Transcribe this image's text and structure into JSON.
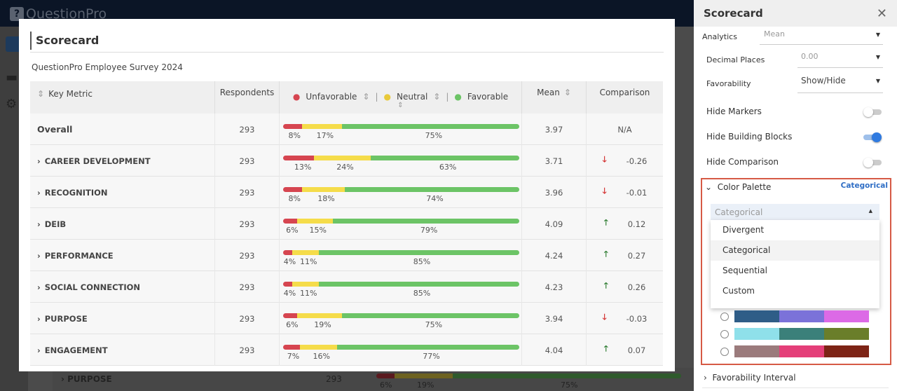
{
  "app": {
    "logo": "QuestionPro"
  },
  "background_row": {
    "label": "PURPOSE",
    "respondents": "293",
    "unfavorable": 6,
    "neutral": 19,
    "favorable": 75,
    "labels": [
      "6%",
      "19%",
      "75%"
    ]
  },
  "modal": {
    "title": "Scorecard",
    "subtitle": "QuestionPro Employee Survey 2024",
    "headers": {
      "key_metric": "Key Metric",
      "respondents": "Respondents",
      "unfavorable": "Unfavorable",
      "neutral": "Neutral",
      "favorable": "Favorable",
      "mean": "Mean",
      "comparison": "Comparison"
    },
    "colors": {
      "unfavorable": "#d64550",
      "neutral": "#f5dc4a",
      "favorable": "#6cc466",
      "up": "#2e7d32",
      "down": "#d32f2f"
    },
    "rows": [
      {
        "label": "Overall",
        "respondents": "293",
        "unf": 8,
        "neu": 17,
        "fav": 75,
        "mean": "3.97",
        "comparison": "N/A",
        "trend": ""
      },
      {
        "label": "CAREER DEVELOPMENT",
        "respondents": "293",
        "unf": 13,
        "neu": 24,
        "fav": 63,
        "mean": "3.71",
        "comparison": "-0.26",
        "trend": "down"
      },
      {
        "label": "RECOGNITION",
        "respondents": "293",
        "unf": 8,
        "neu": 18,
        "fav": 74,
        "mean": "3.96",
        "comparison": "-0.01",
        "trend": "down"
      },
      {
        "label": "DEIB",
        "respondents": "293",
        "unf": 6,
        "neu": 15,
        "fav": 79,
        "mean": "4.09",
        "comparison": "0.12",
        "trend": "up"
      },
      {
        "label": "PERFORMANCE",
        "respondents": "293",
        "unf": 4,
        "neu": 11,
        "fav": 85,
        "mean": "4.24",
        "comparison": "0.27",
        "trend": "up"
      },
      {
        "label": "SOCIAL CONNECTION",
        "respondents": "293",
        "unf": 4,
        "neu": 11,
        "fav": 85,
        "mean": "4.23",
        "comparison": "0.26",
        "trend": "up"
      },
      {
        "label": "PURPOSE",
        "respondents": "293",
        "unf": 6,
        "neu": 19,
        "fav": 75,
        "mean": "3.94",
        "comparison": "-0.03",
        "trend": "down"
      },
      {
        "label": "ENGAGEMENT",
        "respondents": "293",
        "unf": 7,
        "neu": 16,
        "fav": 77,
        "mean": "4.04",
        "comparison": "0.07",
        "trend": "up"
      }
    ]
  },
  "panel": {
    "title": "Scorecard",
    "analytics": {
      "label": "Analytics",
      "value": "Mean"
    },
    "decimal": {
      "label": "Decimal Places",
      "value": "0.00"
    },
    "favorability": {
      "label": "Favorability",
      "value": "Show/Hide"
    },
    "toggles": [
      {
        "label": "Hide Markers",
        "on": false
      },
      {
        "label": "Hide Building Blocks",
        "on": true
      },
      {
        "label": "Hide Comparison",
        "on": false
      }
    ],
    "color_palette": {
      "label": "Color Palette",
      "current": "Categorical",
      "select_value": "Categorical",
      "options": [
        "Divergent",
        "Categorical",
        "Sequential",
        "Custom"
      ],
      "highlighted": "Categorical",
      "palettes": [
        [
          "#2f5d87",
          "#7b72d9",
          "#dc6ae6"
        ],
        [
          "#8fe0ea",
          "#3b807a",
          "#6a7e2a"
        ],
        [
          "#9b7b7c",
          "#e43f79",
          "#7d2416"
        ]
      ]
    },
    "favorability_interval": "Favorability Interval"
  }
}
